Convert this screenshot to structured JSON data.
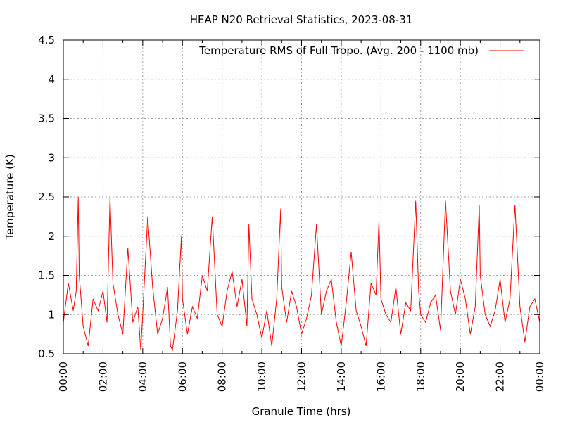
{
  "chart_data": {
    "type": "line",
    "title": "HEAP N20 Retrieval Statistics, 2023-08-31",
    "xlabel": "Granule Time (hrs)",
    "ylabel": "Temperature (K)",
    "xlim": [
      0,
      24
    ],
    "ylim": [
      0.5,
      4.5
    ],
    "x_tick_labels": [
      "00:00",
      "02:00",
      "04:00",
      "06:00",
      "08:00",
      "10:00",
      "12:00",
      "14:00",
      "16:00",
      "18:00",
      "20:00",
      "22:00",
      "00:00"
    ],
    "y_tick_labels": [
      "0.5",
      "1",
      "1.5",
      "2",
      "2.5",
      "3",
      "3.5",
      "4",
      "4.5"
    ],
    "grid": true,
    "legend_position": "top-right",
    "series": [
      {
        "name": "Temperature RMS of Full Tropo. (Avg. 200 - 1100 mb)",
        "color": "#ff0000",
        "x": [
          0.0,
          0.25,
          0.5,
          0.65,
          0.75,
          0.8,
          1.0,
          1.25,
          1.5,
          1.75,
          2.0,
          2.2,
          2.35,
          2.5,
          2.75,
          3.0,
          3.25,
          3.5,
          3.75,
          3.9,
          4.0,
          4.25,
          4.5,
          4.75,
          5.0,
          5.25,
          5.4,
          5.5,
          5.75,
          5.95,
          6.0,
          6.25,
          6.5,
          6.75,
          7.0,
          7.25,
          7.5,
          7.75,
          8.0,
          8.25,
          8.5,
          8.75,
          9.0,
          9.25,
          9.35,
          9.5,
          9.75,
          10.0,
          10.25,
          10.5,
          10.75,
          10.95,
          11.0,
          11.25,
          11.5,
          11.75,
          12.0,
          12.25,
          12.5,
          12.75,
          13.0,
          13.25,
          13.5,
          13.75,
          14.0,
          14.25,
          14.5,
          14.75,
          15.0,
          15.25,
          15.5,
          15.75,
          15.9,
          16.0,
          16.25,
          16.5,
          16.75,
          17.0,
          17.25,
          17.5,
          17.75,
          17.9,
          18.0,
          18.25,
          18.5,
          18.75,
          19.0,
          19.25,
          19.5,
          19.75,
          20.0,
          20.25,
          20.5,
          20.75,
          20.95,
          21.0,
          21.25,
          21.5,
          21.75,
          22.0,
          22.25,
          22.5,
          22.75,
          23.0,
          23.25,
          23.5,
          23.75,
          24.0
        ],
        "y": [
          0.9,
          1.4,
          1.05,
          1.3,
          2.5,
          1.5,
          0.85,
          0.6,
          1.2,
          1.05,
          1.3,
          0.9,
          2.5,
          1.4,
          1.0,
          0.75,
          1.85,
          0.9,
          1.1,
          0.55,
          1.0,
          2.25,
          1.35,
          0.75,
          0.95,
          1.35,
          0.6,
          0.55,
          1.05,
          2.0,
          1.2,
          0.75,
          1.1,
          0.95,
          1.5,
          1.3,
          2.25,
          1.0,
          0.85,
          1.3,
          1.55,
          1.1,
          1.45,
          0.85,
          2.15,
          1.2,
          1.0,
          0.7,
          1.05,
          0.6,
          1.2,
          2.35,
          1.35,
          0.9,
          1.3,
          1.1,
          0.75,
          0.95,
          1.25,
          2.15,
          1.0,
          1.3,
          1.45,
          0.9,
          0.6,
          1.15,
          1.8,
          1.05,
          0.85,
          0.6,
          1.4,
          1.25,
          2.2,
          1.2,
          1.0,
          0.9,
          1.35,
          0.75,
          1.15,
          1.05,
          2.45,
          1.3,
          1.0,
          0.9,
          1.15,
          1.25,
          0.8,
          2.45,
          1.3,
          1.0,
          1.45,
          1.2,
          0.75,
          1.1,
          2.4,
          1.5,
          1.0,
          0.85,
          1.05,
          1.45,
          0.9,
          1.2,
          2.4,
          1.1,
          0.65,
          1.1,
          1.2,
          0.9
        ]
      }
    ]
  }
}
